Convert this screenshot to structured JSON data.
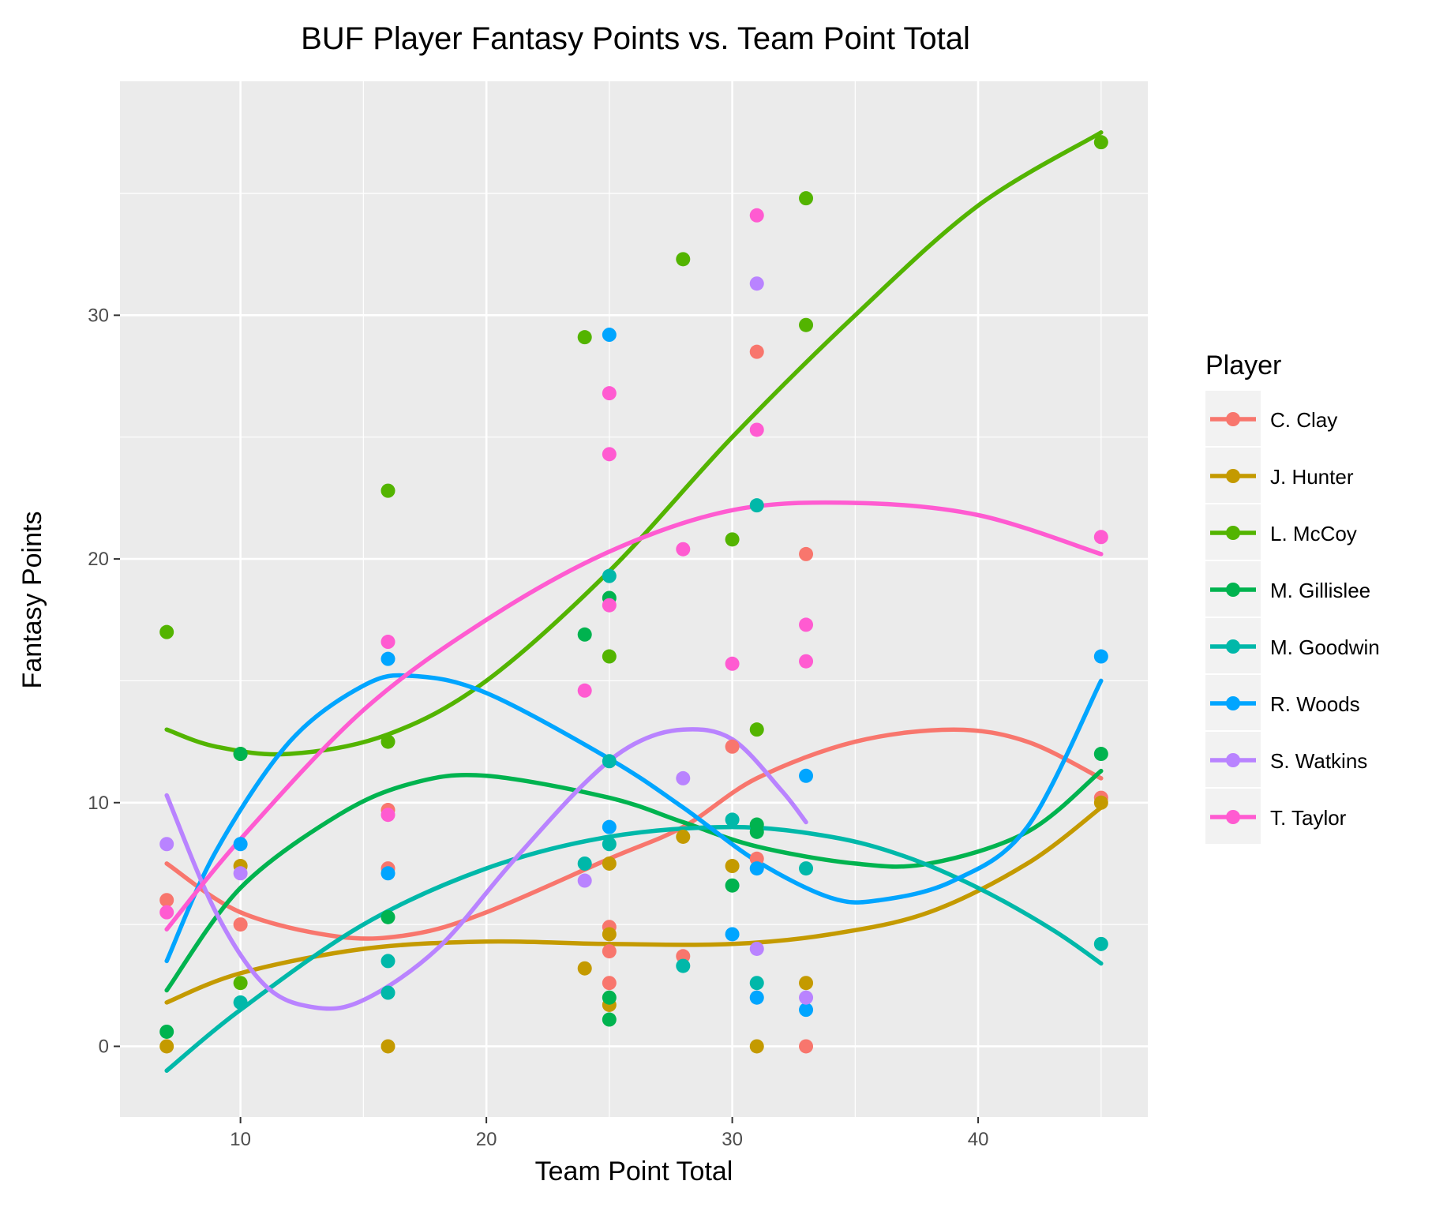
{
  "chart_data": {
    "type": "scatter",
    "title": "BUF Player Fantasy Points vs. Team Point Total",
    "xlabel": "Team Point Total",
    "ylabel": "Fantasy Points",
    "xlim": [
      5.1,
      46.9
    ],
    "ylim": [
      -2.9,
      39.6
    ],
    "xticks": [
      10,
      20,
      30,
      40
    ],
    "yticks": [
      0,
      10,
      20,
      30
    ],
    "grid": true,
    "legend": {
      "title": "Player",
      "position": "right"
    },
    "series": [
      {
        "name": "C. Clay",
        "color": "#F8766D",
        "points": [
          [
            7,
            6
          ],
          [
            10,
            5
          ],
          [
            16,
            9.7
          ],
          [
            16,
            7.3
          ],
          [
            25,
            4.9
          ],
          [
            25,
            3.9
          ],
          [
            25,
            2.6
          ],
          [
            28,
            3.7
          ],
          [
            30,
            12.3
          ],
          [
            31,
            28.5
          ],
          [
            31,
            7.7
          ],
          [
            33,
            20.2
          ],
          [
            33,
            0
          ],
          [
            45,
            10.2
          ]
        ],
        "curve": [
          [
            7,
            7.5
          ],
          [
            10,
            5.5
          ],
          [
            14,
            4.5
          ],
          [
            17,
            4.6
          ],
          [
            20,
            5.5
          ],
          [
            25,
            7.7
          ],
          [
            28,
            9
          ],
          [
            31,
            11
          ],
          [
            35,
            12.5
          ],
          [
            39,
            13
          ],
          [
            42,
            12.5
          ],
          [
            45,
            11
          ]
        ]
      },
      {
        "name": "J. Hunter",
        "color": "#C49A00",
        "points": [
          [
            7,
            0
          ],
          [
            10,
            7.4
          ],
          [
            16,
            0
          ],
          [
            24,
            3.2
          ],
          [
            25,
            7.5
          ],
          [
            25,
            4.6
          ],
          [
            25,
            1.7
          ],
          [
            28,
            8.6
          ],
          [
            30,
            7.4
          ],
          [
            31,
            0
          ],
          [
            33,
            2.6
          ],
          [
            45,
            10
          ]
        ],
        "curve": [
          [
            7,
            1.8
          ],
          [
            10,
            3
          ],
          [
            15,
            4
          ],
          [
            20,
            4.3
          ],
          [
            25,
            4.2
          ],
          [
            30,
            4.2
          ],
          [
            34,
            4.6
          ],
          [
            38,
            5.5
          ],
          [
            42,
            7.5
          ],
          [
            45,
            9.8
          ]
        ]
      },
      {
        "name": "L. McCoy",
        "color": "#53B400",
        "points": [
          [
            7,
            17
          ],
          [
            10,
            12
          ],
          [
            10,
            2.6
          ],
          [
            16,
            22.8
          ],
          [
            16,
            12.5
          ],
          [
            24,
            29.1
          ],
          [
            25,
            16
          ],
          [
            28,
            32.3
          ],
          [
            30,
            20.8
          ],
          [
            31,
            13
          ],
          [
            33,
            34.8
          ],
          [
            33,
            29.6
          ],
          [
            45,
            37.1
          ]
        ],
        "curve": [
          [
            7,
            13
          ],
          [
            9,
            12.3
          ],
          [
            12,
            12
          ],
          [
            16,
            12.8
          ],
          [
            20,
            15
          ],
          [
            25,
            19.5
          ],
          [
            30,
            25
          ],
          [
            35,
            30
          ],
          [
            40,
            34.5
          ],
          [
            45,
            37.5
          ]
        ]
      },
      {
        "name": "M. Gillislee",
        "color": "#00B34F",
        "points": [
          [
            7,
            0.6
          ],
          [
            10,
            12
          ],
          [
            16,
            5.3
          ],
          [
            24,
            16.9
          ],
          [
            25,
            18.4
          ],
          [
            25,
            2
          ],
          [
            25,
            1.1
          ],
          [
            30,
            6.6
          ],
          [
            31,
            9.1
          ],
          [
            31,
            8.8
          ],
          [
            45,
            12
          ]
        ],
        "curve": [
          [
            7,
            2.3
          ],
          [
            10,
            6.5
          ],
          [
            14,
            9.5
          ],
          [
            17,
            10.8
          ],
          [
            20,
            11.1
          ],
          [
            25,
            10.2
          ],
          [
            28,
            9.2
          ],
          [
            31,
            8.2
          ],
          [
            35,
            7.5
          ],
          [
            38,
            7.5
          ],
          [
            42,
            8.8
          ],
          [
            45,
            11.3
          ]
        ]
      },
      {
        "name": "M. Goodwin",
        "color": "#00B8A9",
        "points": [
          [
            10,
            1.8
          ],
          [
            16,
            3.5
          ],
          [
            16,
            2.2
          ],
          [
            24,
            7.5
          ],
          [
            25,
            19.3
          ],
          [
            25,
            11.7
          ],
          [
            25,
            8.3
          ],
          [
            28,
            3.3
          ],
          [
            30,
            9.3
          ],
          [
            31,
            22.2
          ],
          [
            31,
            2.6
          ],
          [
            33,
            7.3
          ],
          [
            45,
            4.2
          ]
        ],
        "curve": [
          [
            7,
            -1
          ],
          [
            10,
            1.5
          ],
          [
            15,
            5
          ],
          [
            20,
            7.3
          ],
          [
            25,
            8.6
          ],
          [
            30,
            9
          ],
          [
            34,
            8.6
          ],
          [
            37,
            7.8
          ],
          [
            40,
            6.5
          ],
          [
            43,
            4.8
          ],
          [
            45,
            3.4
          ]
        ]
      },
      {
        "name": "R. Woods",
        "color": "#00A5FF",
        "points": [
          [
            10,
            8.3
          ],
          [
            16,
            15.9
          ],
          [
            16,
            7.1
          ],
          [
            25,
            29.2
          ],
          [
            25,
            9
          ],
          [
            30,
            4.6
          ],
          [
            31,
            7.3
          ],
          [
            31,
            2
          ],
          [
            33,
            11.1
          ],
          [
            33,
            1.5
          ],
          [
            45,
            16
          ]
        ],
        "curve": [
          [
            7,
            3.5
          ],
          [
            9,
            8
          ],
          [
            12,
            12.5
          ],
          [
            15,
            14.8
          ],
          [
            17,
            15.2
          ],
          [
            20,
            14.5
          ],
          [
            25,
            11.8
          ],
          [
            28,
            9.8
          ],
          [
            31,
            7.6
          ],
          [
            34,
            6.1
          ],
          [
            36,
            6
          ],
          [
            39,
            6.8
          ],
          [
            42,
            9
          ],
          [
            45,
            15
          ]
        ]
      },
      {
        "name": "S. Watkins",
        "color": "#B983FF",
        "points": [
          [
            7,
            8.3
          ],
          [
            10,
            7.1
          ],
          [
            24,
            6.8
          ],
          [
            28,
            11
          ],
          [
            31,
            31.3
          ],
          [
            31,
            4
          ],
          [
            33,
            2
          ]
        ],
        "curve": [
          [
            7,
            10.3
          ],
          [
            9,
            5.5
          ],
          [
            11,
            2.5
          ],
          [
            13,
            1.6
          ],
          [
            15,
            1.9
          ],
          [
            18,
            4
          ],
          [
            21,
            7.5
          ],
          [
            24,
            10.8
          ],
          [
            26,
            12.4
          ],
          [
            28,
            13
          ],
          [
            30,
            12.6
          ],
          [
            32,
            10.5
          ],
          [
            33,
            9.2
          ]
        ]
      },
      {
        "name": "T. Taylor",
        "color": "#FF5BD1",
        "points": [
          [
            7,
            5.5
          ],
          [
            16,
            16.6
          ],
          [
            16,
            9.5
          ],
          [
            24,
            14.6
          ],
          [
            25,
            26.8
          ],
          [
            25,
            24.3
          ],
          [
            25,
            18.1
          ],
          [
            28,
            20.4
          ],
          [
            30,
            15.7
          ],
          [
            31,
            34.1
          ],
          [
            31,
            25.3
          ],
          [
            33,
            17.3
          ],
          [
            33,
            15.8
          ],
          [
            45,
            20.9
          ]
        ],
        "curve": [
          [
            7,
            4.8
          ],
          [
            10,
            8.5
          ],
          [
            15,
            13.8
          ],
          [
            20,
            17.5
          ],
          [
            25,
            20.3
          ],
          [
            30,
            22
          ],
          [
            35,
            22.3
          ],
          [
            40,
            21.8
          ],
          [
            45,
            20.2
          ]
        ]
      }
    ]
  }
}
